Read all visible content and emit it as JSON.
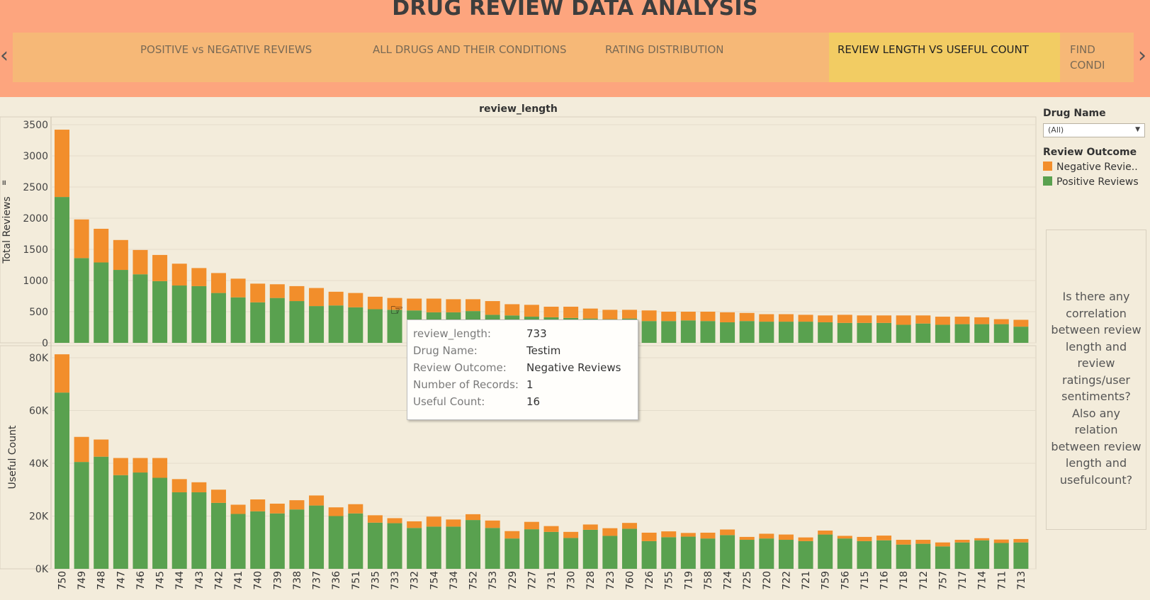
{
  "header": {
    "title": "DRUG REVIEW DATA ANALYSIS"
  },
  "tabs": [
    {
      "label": ""
    },
    {
      "label": "POSITIVE vs NEGATIVE REVIEWS"
    },
    {
      "label": "ALL DRUGS AND THEIR CONDITIONS"
    },
    {
      "label": "RATING DISTRIBUTION"
    },
    {
      "label": "REVIEW LENGTH VS USEFUL COUNT",
      "active": true
    },
    {
      "label": "FIND CONDI"
    }
  ],
  "nav": {
    "prev_icon": "chevron-left-icon",
    "next_icon": "chevron-right-icon"
  },
  "column_title": "review_length",
  "filters": {
    "drug_name_title": "Drug Name",
    "drug_name_value": "(All)",
    "legend_title": "Review Outcome",
    "legend": [
      {
        "label": "Negative Revie..",
        "color": "#f28e2b"
      },
      {
        "label": "Positive Reviews",
        "color": "#59a14f"
      }
    ]
  },
  "note": "Is there any correlation between review length and review ratings/user sentiments? Also any relation between review length and usefulcount?",
  "tooltip": {
    "rows": [
      {
        "key": "review_length:",
        "value": "733"
      },
      {
        "key": "Drug Name:",
        "value": "Testim"
      },
      {
        "key": "Review Outcome:",
        "value": "Negative Reviews"
      },
      {
        "key": "Number of Records:",
        "value": "1"
      },
      {
        "key": "Useful Count:",
        "value": "16"
      }
    ]
  },
  "colors": {
    "negative": "#f28e2b",
    "positive": "#59a14f",
    "background": "#f3ecdb",
    "header": "#fda57e"
  },
  "chart_data": [
    {
      "type": "bar",
      "stacked": true,
      "title": "review_length",
      "ylabel": "Total Reviews",
      "ylim": [
        0,
        3500
      ],
      "yticks": [
        "3500",
        "3000",
        "2500",
        "2000",
        "1500",
        "1000",
        "500",
        "0"
      ],
      "categories": [
        "750",
        "749",
        "748",
        "747",
        "746",
        "745",
        "744",
        "743",
        "742",
        "741",
        "740",
        "739",
        "738",
        "737",
        "736",
        "751",
        "735",
        "733",
        "732",
        "754",
        "734",
        "752",
        "753",
        "729",
        "727",
        "731",
        "730",
        "728",
        "723",
        "760",
        "726",
        "755",
        "719",
        "758",
        "724",
        "725",
        "720",
        "722",
        "721",
        "759",
        "756",
        "715",
        "716",
        "718",
        "712",
        "757",
        "717",
        "714",
        "711",
        "713"
      ],
      "series": [
        {
          "name": "Positive Reviews",
          "values": [
            2340,
            1360,
            1290,
            1170,
            1100,
            990,
            920,
            910,
            800,
            730,
            650,
            720,
            670,
            590,
            600,
            570,
            540,
            530,
            520,
            490,
            490,
            510,
            450,
            440,
            420,
            410,
            400,
            390,
            380,
            390,
            350,
            350,
            360,
            350,
            330,
            350,
            340,
            340,
            340,
            330,
            320,
            320,
            320,
            290,
            310,
            290,
            300,
            300,
            300,
            260
          ]
        },
        {
          "name": "Negative Reviews",
          "values": [
            1080,
            620,
            540,
            480,
            390,
            420,
            350,
            290,
            320,
            300,
            300,
            220,
            240,
            290,
            220,
            230,
            200,
            190,
            190,
            220,
            210,
            190,
            220,
            180,
            190,
            170,
            180,
            160,
            150,
            140,
            170,
            150,
            140,
            150,
            160,
            130,
            120,
            120,
            110,
            110,
            130,
            120,
            120,
            150,
            130,
            130,
            120,
            110,
            80,
            110
          ]
        }
      ]
    },
    {
      "type": "bar",
      "stacked": true,
      "ylabel": "Useful Count",
      "ylim": [
        0,
        80000
      ],
      "yticks": [
        "80K",
        "60K",
        "40K",
        "20K",
        "0K"
      ],
      "categories": [
        "750",
        "749",
        "748",
        "747",
        "746",
        "745",
        "744",
        "743",
        "742",
        "741",
        "740",
        "739",
        "738",
        "737",
        "736",
        "751",
        "735",
        "733",
        "732",
        "754",
        "734",
        "752",
        "753",
        "729",
        "727",
        "731",
        "730",
        "728",
        "723",
        "760",
        "726",
        "755",
        "719",
        "758",
        "724",
        "725",
        "720",
        "722",
        "721",
        "759",
        "756",
        "715",
        "716",
        "718",
        "712",
        "757",
        "717",
        "714",
        "711",
        "713"
      ],
      "series": [
        {
          "name": "Positive Reviews",
          "values": [
            66800,
            40500,
            42500,
            35500,
            36500,
            34500,
            29000,
            29000,
            25000,
            20800,
            21800,
            21000,
            22500,
            24000,
            20000,
            21000,
            17500,
            17300,
            15500,
            16000,
            16000,
            18500,
            15500,
            11500,
            15000,
            14000,
            11700,
            14800,
            12500,
            15200,
            10500,
            12000,
            12200,
            11500,
            12800,
            11000,
            11500,
            11000,
            10500,
            13000,
            11500,
            10500,
            10800,
            9200,
            9500,
            8500,
            10000,
            10800,
            9800,
            10000
          ]
        },
        {
          "name": "Negative Reviews",
          "values": [
            14500,
            9500,
            6500,
            6500,
            5500,
            7500,
            5000,
            3800,
            5000,
            3500,
            4500,
            3700,
            3500,
            3800,
            3300,
            3500,
            2800,
            1900,
            2500,
            3800,
            2700,
            2200,
            2800,
            2800,
            2800,
            2200,
            2300,
            2000,
            2900,
            2200,
            3200,
            2200,
            1400,
            2200,
            2100,
            1100,
            1800,
            2000,
            1400,
            1500,
            1000,
            1600,
            1800,
            1800,
            1500,
            1500,
            1000,
            800,
            1300,
            1300
          ]
        }
      ]
    }
  ]
}
